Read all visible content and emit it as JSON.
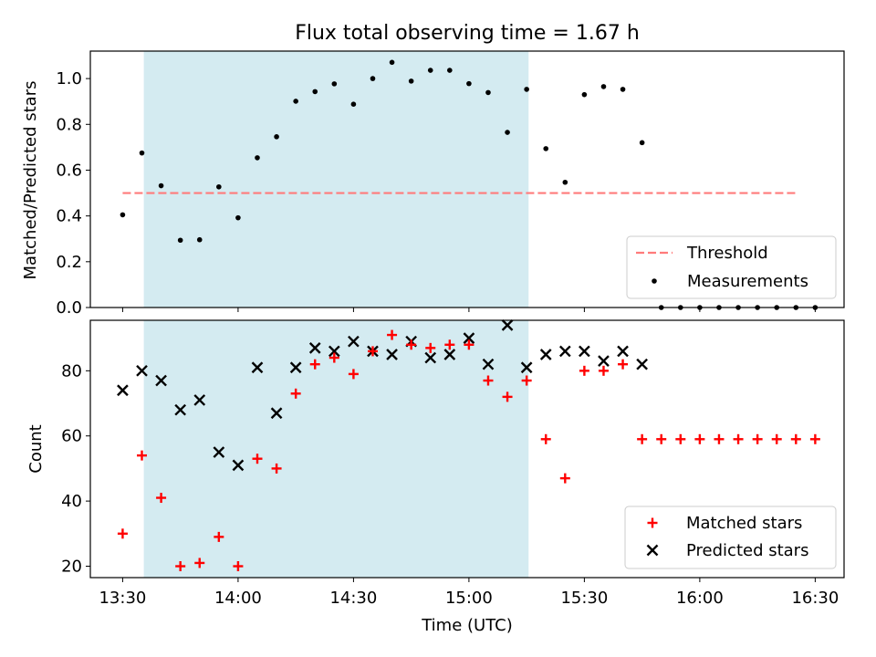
{
  "chart_data": {
    "type": "scatter",
    "title": "Flux total observing time = 1.67 h",
    "xlabel": "Time (UTC)",
    "x_ticks": [
      "13:30",
      "14:00",
      "14:30",
      "15:00",
      "15:30",
      "16:00",
      "16:30"
    ],
    "x_tick_minutes": [
      0,
      30,
      60,
      90,
      120,
      150,
      180
    ],
    "xlim_minutes": [
      -8.4,
      187.5
    ],
    "shaded_span_minutes": [
      5.5,
      105.5
    ],
    "colors": {
      "span": "#d4ebf1",
      "threshold": "#ff7b7b",
      "matched": "#ff0000",
      "measure": "#000000",
      "predicted": "#000000"
    },
    "x": [
      0,
      5,
      10,
      15,
      20,
      25,
      30,
      35,
      40,
      45,
      50,
      55,
      60,
      65,
      70,
      75,
      80,
      85,
      90,
      95,
      100,
      105,
      110,
      115,
      120,
      125,
      130,
      135,
      140,
      145,
      150,
      155,
      160,
      165,
      170,
      175,
      180
    ],
    "top_panel": {
      "ylabel": "Matched/Predicted stars",
      "ylim": [
        0,
        1.12
      ],
      "y_ticks": [
        "0.0",
        "0.2",
        "0.4",
        "0.6",
        "0.8",
        "1.0"
      ],
      "y_tick_values": [
        0,
        0.2,
        0.4,
        0.6,
        0.8,
        1.0
      ],
      "threshold": 0.5,
      "threshold_x_range": [
        0,
        175
      ],
      "series": [
        {
          "name": "Measurements",
          "marker": "dot",
          "values": [
            0.405,
            0.675,
            0.532,
            0.294,
            0.296,
            0.527,
            0.392,
            0.654,
            0.746,
            0.901,
            0.943,
            0.977,
            0.888,
            1.0,
            1.071,
            0.989,
            1.036,
            1.036,
            0.978,
            0.939,
            0.765,
            0.953,
            0.694,
            0.547,
            0.93,
            0.965,
            0.953,
            0.72,
            0.0,
            0.0,
            0.0,
            0.0,
            0.0,
            0.0,
            0.0,
            0.0,
            0.0
          ]
        }
      ],
      "legend": {
        "position": "lower-right",
        "entries": [
          "Threshold",
          "Measurements"
        ]
      }
    },
    "bottom_panel": {
      "ylabel": "Count",
      "ylim": [
        16.5,
        95.5
      ],
      "y_ticks": [
        "20",
        "40",
        "60",
        "80"
      ],
      "y_tick_values": [
        20,
        40,
        60,
        80
      ],
      "series": [
        {
          "name": "Matched stars",
          "marker": "plus",
          "values": [
            30,
            54,
            41,
            20,
            21,
            29,
            20,
            53,
            50,
            73,
            82,
            84,
            79,
            86,
            91,
            88,
            87,
            88,
            88,
            77,
            72,
            77,
            59,
            47,
            80,
            80,
            82,
            59,
            59,
            59,
            59,
            59,
            59,
            59,
            59,
            59,
            59
          ]
        },
        {
          "name": "Predicted stars",
          "marker": "x",
          "values": [
            74,
            80,
            77,
            68,
            71,
            55,
            51,
            81,
            67,
            81,
            87,
            86,
            89,
            86,
            85,
            89,
            84,
            85,
            90,
            82,
            94,
            81,
            85,
            86,
            86,
            83,
            86,
            82,
            null,
            null,
            null,
            null,
            null,
            null,
            null,
            null,
            null
          ]
        }
      ],
      "legend": {
        "position": "lower-right",
        "entries": [
          "Matched stars",
          "Predicted stars"
        ]
      }
    }
  }
}
